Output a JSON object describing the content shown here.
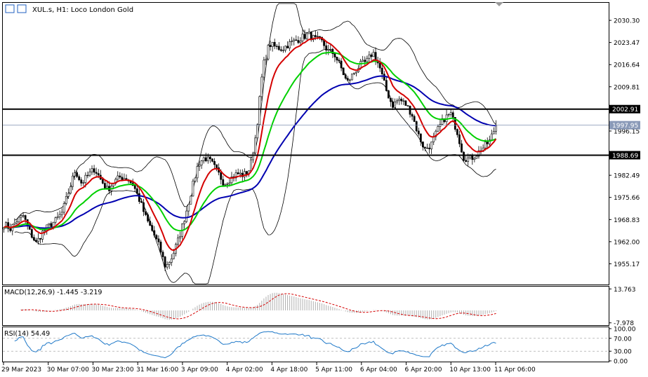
{
  "header": {
    "title": "XUL.s, H1:  Loco London Gold"
  },
  "colors": {
    "bull": "#000000",
    "bear": "#000000",
    "ma_fast": "#d40000",
    "ma_mid": "#00d000",
    "ma_slow": "#0000b0",
    "bands": "#000000",
    "macd_hist": "#b0b0b0",
    "macd_signal": "#d40000",
    "rsi": "#1e78c8",
    "level": "#000000"
  },
  "chart_data": [
    {
      "type": "candlestick",
      "ylim": [
        1949.0,
        2035.5
      ],
      "y_ticks": [
        "2030.30",
        "2023.47",
        "2016.64",
        "2009.81",
        "1996.15",
        "1982.49",
        "1975.66",
        "1968.83",
        "1962.00",
        "1955.17"
      ],
      "levels": [
        {
          "label": "2002.91",
          "value": 2002.91
        },
        {
          "label": "1988.69",
          "value": 1988.69
        }
      ],
      "current_price": {
        "label": "1997.95",
        "value": 1997.95
      },
      "x_labels": [
        "29 Mar 2023",
        "30 Mar 07:00",
        "30 Mar 23:00",
        "31 Mar 16:00",
        "3 Apr 09:00",
        "4 Apr 02:00",
        "4 Apr 18:00",
        "5 Apr 11:00",
        "6 Apr 04:00",
        "6 Apr 20:00",
        "10 Apr 13:00",
        "11 Apr 06:00"
      ],
      "series": [
        {
          "name": "price",
          "close_path": [
            1967.5,
            1966.0,
            1968.5,
            1970.0,
            1965.0,
            1961.5,
            1965.0,
            1967.0,
            1968.5,
            1971.0,
            1977.5,
            1984.0,
            1980.0,
            1982.5,
            1984.5,
            1981.0,
            1978.0,
            1980.5,
            1982.0,
            1981.5,
            1979.5,
            1974.5,
            1969.0,
            1965.0,
            1960.5,
            1954.0,
            1957.5,
            1963.0,
            1970.0,
            1978.0,
            1986.0,
            1988.0,
            1986.5,
            1983.5,
            1980.0,
            1981.5,
            1983.0,
            1982.5,
            1984.5,
            1996.0,
            2016.0,
            2023.0,
            2022.0,
            2021.5,
            2023.0,
            2024.0,
            2025.0,
            2026.0,
            2024.5,
            2024.0,
            2021.0,
            2020.0,
            2016.0,
            2011.0,
            2014.0,
            2016.5,
            2017.5,
            2020.5,
            2016.0,
            2009.0,
            2004.0,
            2006.0,
            2004.5,
            2001.5,
            1995.0,
            1990.5,
            1992.0,
            1996.5,
            2000.0,
            2001.5,
            1996.0,
            1988.0,
            1987.5,
            1989.0,
            1991.0,
            1993.0,
            1997.95
          ]
        }
      ]
    },
    {
      "type": "line",
      "title": "MACD(12,26,9) -1.445 -3.219",
      "ylim": [
        -9.0,
        14.8
      ],
      "y_ticks": [
        "13.763",
        "-7.978"
      ]
    },
    {
      "type": "line",
      "title": "RSI(14) 54.49",
      "ylim": [
        0,
        100
      ],
      "y_ticks": [
        "100.00",
        "70.00",
        "30.00",
        "0.00"
      ],
      "levels": [
        70,
        30
      ],
      "last_value": 54.49
    }
  ]
}
